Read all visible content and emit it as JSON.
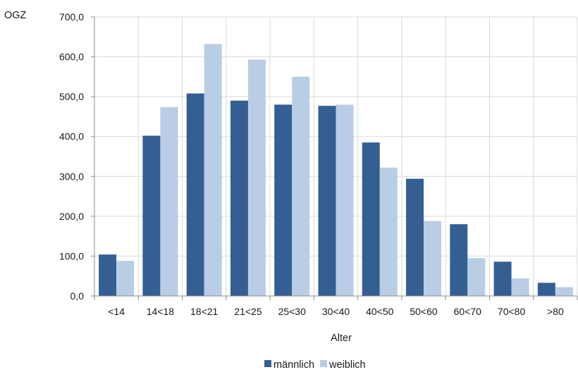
{
  "chart_data": {
    "type": "bar",
    "ylabel": "OGZ",
    "xlabel": "Alter",
    "categories": [
      "<14",
      "14<18",
      "18<21",
      "21<25",
      "25<30",
      "30<40",
      "40<50",
      "50<60",
      "60<70",
      "70<80",
      ">80"
    ],
    "yticks": [
      "0,0",
      "100,0",
      "200,0",
      "300,0",
      "400,0",
      "500,0",
      "600,0",
      "700,0"
    ],
    "ylim": [
      0,
      700
    ],
    "grid": true,
    "legend_position": "bottom-center",
    "series": [
      {
        "name": "männlich",
        "color": "#355f92",
        "values": [
          104,
          402,
          508,
          490,
          480,
          477,
          385,
          294,
          180,
          86,
          33
        ]
      },
      {
        "name": "weiblich",
        "color": "#b9cde5",
        "values": [
          88,
          474,
          632,
          593,
          550,
          480,
          322,
          188,
          95,
          44,
          22
        ]
      }
    ]
  }
}
